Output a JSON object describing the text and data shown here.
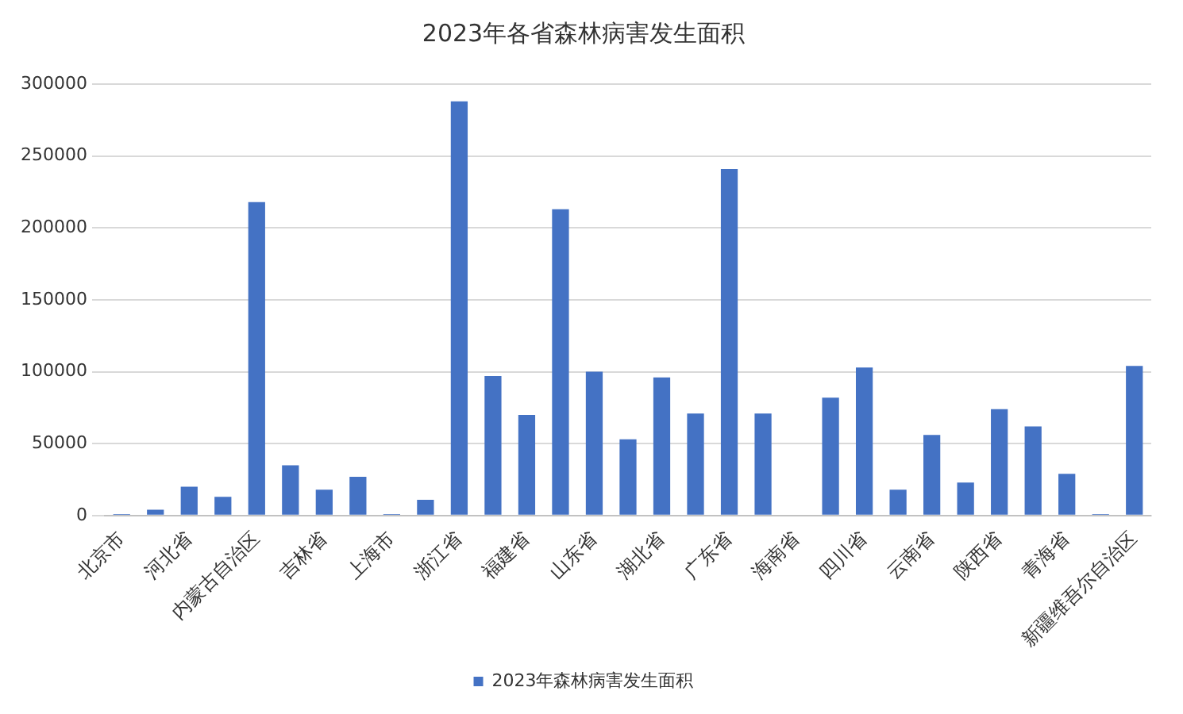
{
  "chart_data": {
    "type": "bar",
    "title": "2023年各省森林病害发生面积",
    "categories": [
      "北京市",
      null,
      "河北省",
      null,
      "内蒙古自治区",
      null,
      "吉林省",
      null,
      "上海市",
      null,
      "浙江省",
      null,
      "福建省",
      null,
      "山东省",
      null,
      "湖北省",
      null,
      "广东省",
      null,
      "海南省",
      null,
      "四川省",
      null,
      "云南省",
      null,
      "陕西省",
      null,
      "青海省",
      null,
      "新疆维吾尔自治区"
    ],
    "series": [
      {
        "name": "2023年森林病害发生面积",
        "color": "#4472c4",
        "values": [
          1000,
          4000,
          20000,
          13000,
          218000,
          35000,
          18000,
          27000,
          1000,
          11000,
          288000,
          97000,
          70000,
          213000,
          100000,
          53000,
          96000,
          71000,
          241000,
          71000,
          0,
          82000,
          103000,
          18000,
          56000,
          23000,
          74000,
          62000,
          29000,
          1000,
          104000
        ]
      }
    ],
    "ylim": [
      0,
      300000
    ],
    "yticks": [
      0,
      50000,
      100000,
      150000,
      200000,
      250000,
      300000
    ],
    "grid": "y",
    "legend": "bottom"
  }
}
